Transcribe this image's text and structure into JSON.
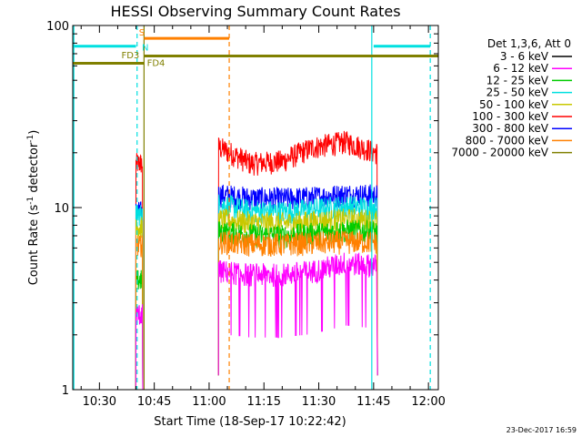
{
  "chart_data": {
    "type": "line",
    "title": "HESSI Observing Summary Count Rates",
    "xlabel": "Start Time (18-Sep-17 10:22:42)",
    "ylabel_main": "Count Rate (s",
    "ylabel_sup1": "-1",
    "ylabel_mid": " detector",
    "ylabel_sup2": "-1",
    "ylabel_end": ")",
    "yscale": "log",
    "ylim": [
      1,
      100
    ],
    "xlim_minutes": [
      22.7,
      122.7
    ],
    "x_ticks": [
      {
        "minute": 30,
        "label": "10:30"
      },
      {
        "minute": 45,
        "label": "10:45"
      },
      {
        "minute": 60,
        "label": "11:00"
      },
      {
        "minute": 75,
        "label": "11:15"
      },
      {
        "minute": 90,
        "label": "11:30"
      },
      {
        "minute": 105,
        "label": "11:45"
      },
      {
        "minute": 120,
        "label": "12:00"
      }
    ],
    "y_ticks": [
      {
        "value": 1,
        "label": "1"
      },
      {
        "value": 10,
        "label": "10"
      },
      {
        "value": 100,
        "label": "100"
      }
    ],
    "legend": {
      "title": "Det 1,3,6, Att 0",
      "entries": [
        {
          "label": "3 - 6 keV",
          "color": "#000000"
        },
        {
          "label": "6 - 12 keV",
          "color": "#ff00ff"
        },
        {
          "label": "12 - 25 keV",
          "color": "#00cc00"
        },
        {
          "label": "25 - 50 keV",
          "color": "#00e0e0"
        },
        {
          "label": "50 - 100 keV",
          "color": "#c8c800"
        },
        {
          "label": "100 - 300 keV",
          "color": "#ff0000"
        },
        {
          "label": "300 - 800 keV",
          "color": "#0000ff"
        },
        {
          "label": "800 - 7000 keV",
          "color": "#ff8000"
        },
        {
          "label": "7000 - 20000 keV",
          "color": "#808000"
        }
      ]
    },
    "segments": [
      {
        "start": 40.0,
        "end": 41.8
      },
      {
        "start": 62.6,
        "end": 106.0
      }
    ],
    "series": [
      {
        "name": "100 - 300 keV",
        "color": "#ff0000",
        "level1": 17.5,
        "level2": [
          21.5,
          17.5,
          18.0,
          21.5,
          23.0,
          20.0
        ]
      },
      {
        "name": "300 - 800 keV",
        "color": "#0000ff",
        "level1": 9.5,
        "level2": [
          11.8,
          11.3,
          11.2,
          11.4,
          11.8,
          11.7
        ]
      },
      {
        "name": "25 - 50 keV",
        "color": "#00e0e0",
        "level1": 9.2,
        "level2": [
          10.5,
          9.6,
          9.5,
          9.8,
          10.2,
          10.0
        ]
      },
      {
        "name": "50 - 100 keV",
        "color": "#c8c800",
        "level1": 7.8,
        "level2": [
          8.6,
          8.3,
          8.2,
          8.4,
          8.6,
          8.5
        ]
      },
      {
        "name": "12 - 25 keV",
        "color": "#00cc00",
        "level1": 4.0,
        "level2": [
          7.4,
          7.1,
          7.0,
          7.2,
          7.5,
          7.4
        ]
      },
      {
        "name": "800 - 7000 keV",
        "color": "#ff8000",
        "level1": 6.2,
        "level2": [
          6.5,
          6.3,
          6.3,
          6.4,
          6.5,
          6.5
        ]
      },
      {
        "name": "6 - 12 keV",
        "color": "#ff00ff",
        "level1": 2.6,
        "level2": [
          4.5,
          4.3,
          4.3,
          4.5,
          5.0,
          4.8
        ]
      }
    ],
    "flag_bars": [
      {
        "color": "#00e0e0",
        "start": 22.7,
        "end": 40.0,
        "value": 77
      },
      {
        "color": "#00e0e0",
        "start": 105.0,
        "end": 120.5,
        "value": 77
      },
      {
        "color": "#ff8000",
        "start": 42.2,
        "end": 65.5,
        "value": 85
      },
      {
        "color": "#808000",
        "start": 22.7,
        "end": 42.2,
        "value": 62
      },
      {
        "color": "#808000",
        "start": 42.2,
        "end": 122.7,
        "value": 68
      }
    ],
    "flag_labels": [
      {
        "text": "S",
        "color": "#ff8000",
        "minute": 40.8,
        "value": 88
      },
      {
        "text": "N",
        "color": "#00e0e0",
        "minute": 41.6,
        "value": 73
      },
      {
        "text": "FD3",
        "color": "#808000",
        "minute": 36.0,
        "value": 66
      },
      {
        "text": "FD4",
        "color": "#808000",
        "minute": 43.0,
        "value": 60
      }
    ],
    "event_lines": [
      {
        "color": "#00e0e0",
        "minute": 23.0,
        "dashed": false
      },
      {
        "color": "#00e0e0",
        "minute": 40.3,
        "dashed": true
      },
      {
        "color": "#808000",
        "minute": 42.2,
        "dashed": false
      },
      {
        "color": "#ff8000",
        "minute": 65.5,
        "dashed": true
      },
      {
        "color": "#00e0e0",
        "minute": 104.5,
        "dashed": false
      },
      {
        "color": "#00e0e0",
        "minute": 120.5,
        "dashed": true
      }
    ],
    "footer_date": "23-Dec-2017 16:59"
  }
}
